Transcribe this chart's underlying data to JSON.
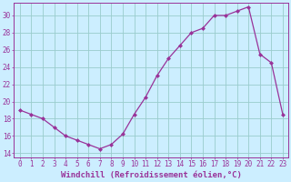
{
  "x": [
    0,
    1,
    2,
    3,
    4,
    5,
    6,
    7,
    8,
    9,
    10,
    11,
    12,
    13,
    14,
    15,
    16,
    17,
    18,
    19,
    20,
    21,
    22,
    23
  ],
  "y": [
    19.0,
    18.5,
    18.0,
    17.0,
    16.0,
    15.5,
    15.0,
    14.5,
    15.0,
    16.2,
    18.5,
    20.5,
    23.0,
    25.0,
    26.5,
    28.0,
    28.5,
    30.0,
    30.0,
    30.5,
    31.0,
    25.5,
    24.5,
    18.5
  ],
  "line_color": "#993399",
  "marker": "D",
  "markersize": 2.0,
  "linewidth": 0.9,
  "background_color": "#cceeff",
  "grid_color": "#99cccc",
  "xlabel": "Windchill (Refroidissement éolien,°C)",
  "xlabel_fontsize": 6.5,
  "xlim": [
    -0.5,
    23.5
  ],
  "ylim": [
    13.5,
    31.5
  ],
  "yticks": [
    14,
    16,
    18,
    20,
    22,
    24,
    26,
    28,
    30
  ],
  "xticks": [
    0,
    1,
    2,
    3,
    4,
    5,
    6,
    7,
    8,
    9,
    10,
    11,
    12,
    13,
    14,
    15,
    16,
    17,
    18,
    19,
    20,
    21,
    22,
    23
  ],
  "tick_fontsize": 5.5,
  "tick_color": "#993399",
  "spine_color": "#993399"
}
